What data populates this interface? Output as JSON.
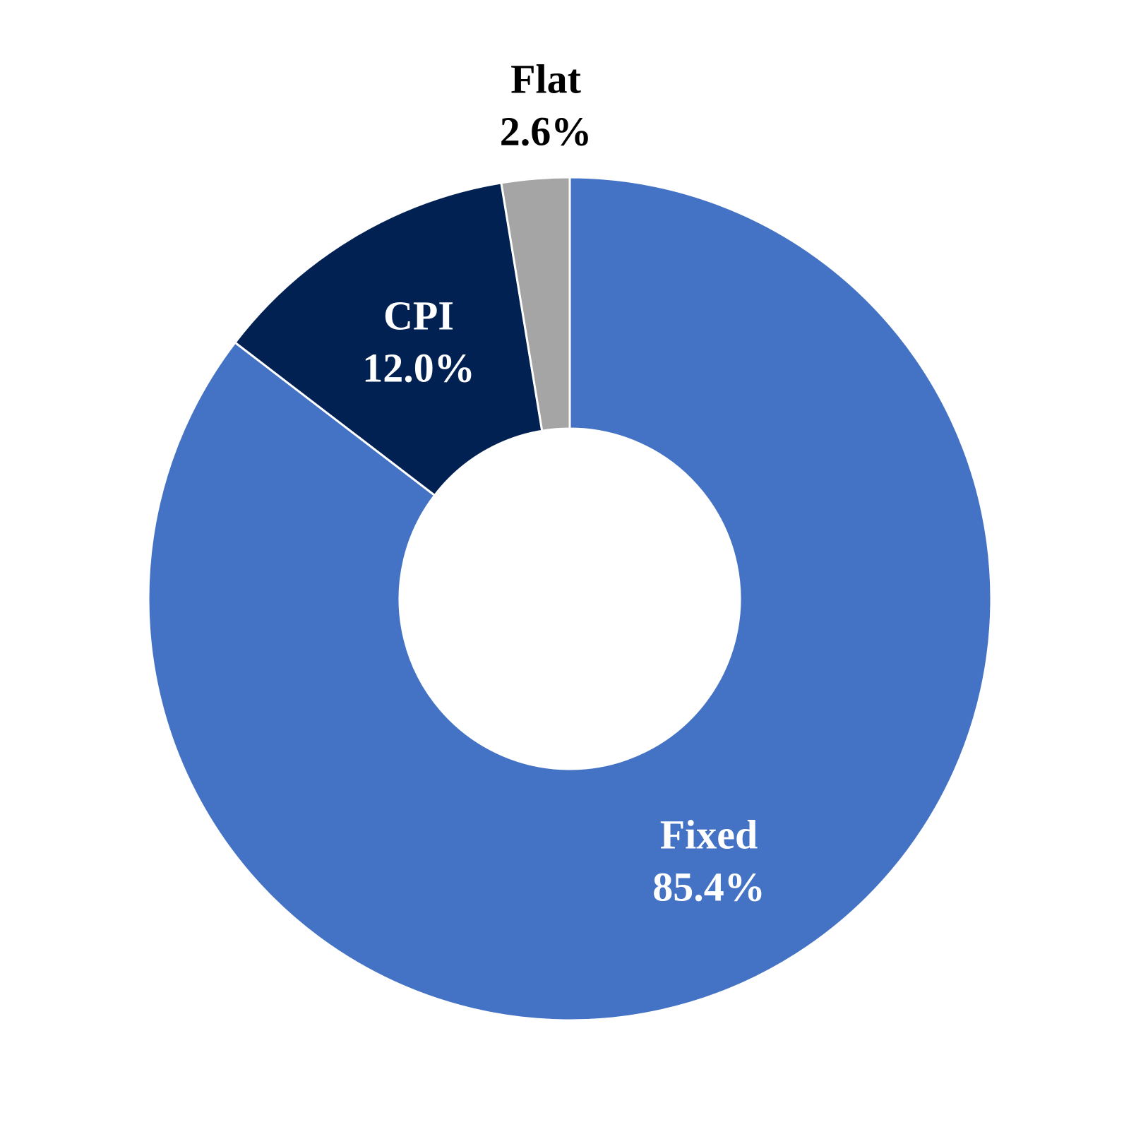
{
  "chart_data": {
    "type": "pie",
    "variant": "donut",
    "start": "top",
    "direction": "clockwise",
    "slices": [
      {
        "label": "Fixed",
        "value": 85.4,
        "value_label": "85.4%",
        "color": "#4472C4",
        "text_color": "#FFFFFF"
      },
      {
        "label": "CPI",
        "value": 12.0,
        "value_label": "12.0%",
        "color": "#022153",
        "text_color": "#FFFFFF"
      },
      {
        "label": "Flat",
        "value": 2.6,
        "value_label": "2.6%",
        "color": "#A5A5A5",
        "text_color": "#000000"
      }
    ],
    "legend": "none"
  }
}
